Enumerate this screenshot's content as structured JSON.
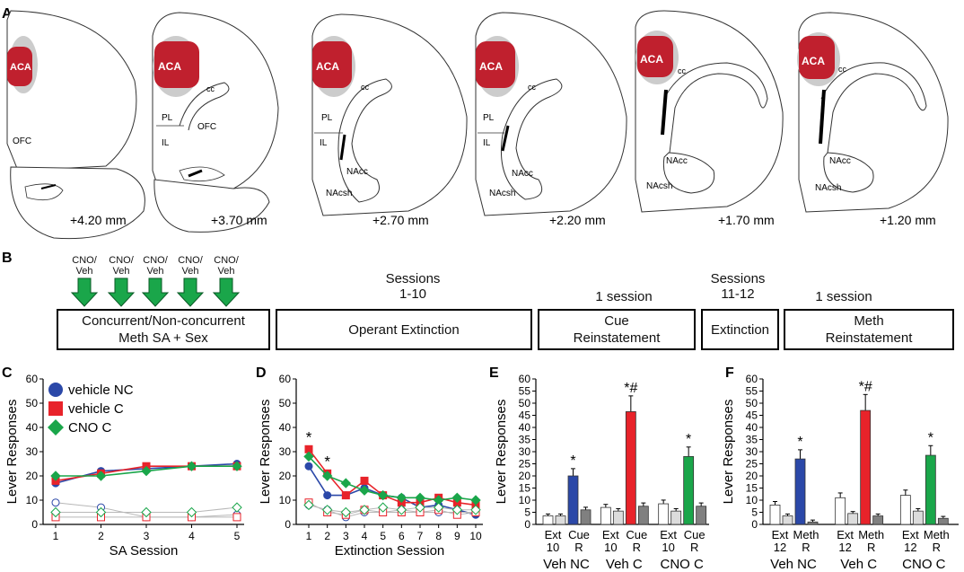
{
  "panel_labels": {
    "A": "A",
    "B": "B",
    "C": "C",
    "D": "D",
    "E": "E",
    "F": "F"
  },
  "colors": {
    "vehicle_nc": "#2b48a8",
    "vehicle_c": "#e8232a",
    "cno_c": "#1aa64a",
    "aca": "#c0202e",
    "arrow": "#1aa64a"
  },
  "panel_a": {
    "sections": [
      {
        "coord": "+4.20 mm",
        "regions": [
          "ACA",
          "OFC"
        ]
      },
      {
        "coord": "+3.70 mm",
        "regions": [
          "ACA",
          "cc",
          "PL",
          "OFC",
          "IL"
        ]
      },
      {
        "coord": "+2.70 mm",
        "regions": [
          "ACA",
          "cc",
          "PL",
          "IL",
          "NAcc",
          "NAcsh"
        ]
      },
      {
        "coord": "+2.20 mm",
        "regions": [
          "ACA",
          "cc",
          "PL",
          "IL",
          "NAcc",
          "NAcsh"
        ]
      },
      {
        "coord": "+1.70 mm",
        "regions": [
          "ACA",
          "cc",
          "NAcc",
          "NAcsh"
        ]
      },
      {
        "coord": "+1.20 mm",
        "regions": [
          "ACA",
          "cc",
          "NAcc",
          "NAcsh"
        ]
      }
    ]
  },
  "panel_b": {
    "injection_label": "CNO/\nVeh",
    "sessions_label_1": "Sessions\n1-10",
    "one_session_1": "1 session",
    "sessions_label_2": "Sessions\n11-12",
    "one_session_2": "1 session",
    "boxes": [
      "Concurrent/Non-concurrent\nMeth SA + Sex",
      "Operant Extinction",
      "Cue\nReinstatement",
      "Extinction",
      "Meth\nReinstatement"
    ]
  },
  "chart_data": [
    {
      "panel": "C",
      "type": "line",
      "ylabel": "Lever Responses",
      "xlabel": "SA Session",
      "ylim": [
        0,
        60
      ],
      "yticks": [
        0,
        10,
        20,
        30,
        40,
        50,
        60
      ],
      "x": [
        1,
        2,
        3,
        4,
        5
      ],
      "legend": [
        "vehicle NC",
        "vehicle C",
        "CNO C"
      ],
      "series": [
        {
          "name": "vehicle NC",
          "lever": "active",
          "values": [
            17,
            22,
            23,
            24,
            25
          ]
        },
        {
          "name": "vehicle C",
          "lever": "active",
          "values": [
            18,
            21,
            24,
            24,
            24
          ]
        },
        {
          "name": "CNO C",
          "lever": "active",
          "values": [
            20,
            20,
            22,
            24,
            24
          ]
        },
        {
          "name": "vehicle NC",
          "lever": "inactive",
          "values": [
            9,
            7,
            3,
            3,
            4
          ]
        },
        {
          "name": "vehicle C",
          "lever": "inactive",
          "values": [
            3,
            3,
            3,
            3,
            3
          ]
        },
        {
          "name": "CNO C",
          "lever": "inactive",
          "values": [
            5,
            5,
            5,
            5,
            7
          ]
        }
      ]
    },
    {
      "panel": "D",
      "type": "line",
      "ylabel": "Lever Responses",
      "xlabel": "Extinction Session",
      "ylim": [
        0,
        60
      ],
      "yticks": [
        0,
        10,
        20,
        30,
        40,
        50,
        60
      ],
      "x": [
        1,
        2,
        3,
        4,
        5,
        6,
        7,
        8,
        9,
        10
      ],
      "annotations": [
        {
          "x": 1,
          "text": "*"
        },
        {
          "x": 2,
          "text": "*"
        }
      ],
      "series": [
        {
          "name": "vehicle NC",
          "lever": "active",
          "values": [
            24,
            12,
            12,
            15,
            12,
            11,
            7,
            8,
            6,
            4
          ]
        },
        {
          "name": "vehicle C",
          "lever": "active",
          "values": [
            31,
            21,
            12,
            18,
            12,
            9,
            9,
            11,
            9,
            8
          ]
        },
        {
          "name": "CNO C",
          "lever": "active",
          "values": [
            28,
            20,
            17,
            14,
            12,
            11,
            11,
            10,
            11,
            10
          ]
        },
        {
          "name": "vehicle NC",
          "lever": "inactive",
          "values": [
            8,
            6,
            3,
            5,
            5,
            6,
            5,
            5,
            5,
            5
          ]
        },
        {
          "name": "vehicle C",
          "lever": "inactive",
          "values": [
            9,
            5,
            4,
            6,
            5,
            5,
            5,
            6,
            4,
            5
          ]
        },
        {
          "name": "CNO C",
          "lever": "inactive",
          "values": [
            8,
            6,
            5,
            6,
            7,
            6,
            7,
            7,
            6,
            6
          ]
        }
      ]
    },
    {
      "panel": "E",
      "type": "bar",
      "ylabel": "Lever Responses",
      "ylim": [
        0,
        60
      ],
      "yticks": [
        0,
        5,
        10,
        15,
        20,
        25,
        30,
        35,
        40,
        45,
        50,
        55,
        60
      ],
      "groups": [
        {
          "name": "Veh NC",
          "ext_label": "Ext\n10",
          "test_label": "Cue\nR",
          "annotation": "*",
          "values": [
            3.5,
            3.5,
            20,
            6
          ]
        },
        {
          "name": "Veh C",
          "ext_label": "Ext\n10",
          "test_label": "Cue\nR",
          "annotation": "*#",
          "values": [
            7,
            5.5,
            46.5,
            7.5
          ]
        },
        {
          "name": "CNO C",
          "ext_label": "Ext\n10",
          "test_label": "Cue\nR",
          "annotation": "*",
          "values": [
            8.5,
            5.5,
            28,
            7.5
          ]
        }
      ],
      "bar_order": [
        "active lever (ext)",
        "inactive lever (ext)",
        "active lever (test)",
        "inactive lever (test)"
      ]
    },
    {
      "panel": "F",
      "type": "bar",
      "ylabel": "Lever Responses",
      "ylim": [
        0,
        60
      ],
      "yticks": [
        0,
        5,
        10,
        15,
        20,
        25,
        30,
        35,
        40,
        45,
        50,
        55,
        60
      ],
      "groups": [
        {
          "name": "Veh NC",
          "ext_label": "Ext\n12",
          "test_label": "Meth\nR",
          "annotation": "*",
          "values": [
            8,
            3.5,
            27,
            1
          ]
        },
        {
          "name": "Veh C",
          "ext_label": "Ext\n12",
          "test_label": "Meth\nR",
          "annotation": "*#",
          "values": [
            11,
            4.5,
            47,
            3.5
          ]
        },
        {
          "name": "CNO C",
          "ext_label": "Ext\n12",
          "test_label": "Meth\nR",
          "annotation": "*",
          "values": [
            12,
            5.5,
            28.5,
            2.5
          ]
        }
      ],
      "bar_order": [
        "active lever (ext)",
        "inactive lever (ext)",
        "active lever (test)",
        "inactive lever (test)"
      ]
    }
  ]
}
